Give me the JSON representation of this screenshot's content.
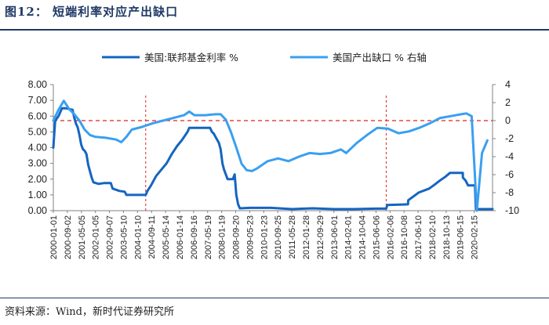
{
  "figure": {
    "title": "图12： 短端利率对应产出缺口",
    "source": "资料来源：Wind，新时代证券研究所"
  },
  "colors": {
    "series_fed": "#1565c0",
    "series_gap": "#3a9ff0",
    "zero_line": "#e0231b",
    "title": "#1f3864",
    "axis": "#808080"
  },
  "chart_data": {
    "type": "line",
    "legend": {
      "placement": "top",
      "items": [
        "美国:联邦基金利率  %",
        "美国产出缺口    %  右轴"
      ]
    },
    "left_axis": {
      "ylim": [
        0,
        8
      ],
      "ticks": [
        "0.00",
        "1.00",
        "2.00",
        "3.00",
        "4.00",
        "5.00",
        "6.00",
        "7.00",
        "8.00"
      ]
    },
    "right_axis": {
      "ylim": [
        -10,
        4
      ],
      "ticks": [
        "-10",
        "-8",
        "-6",
        "-4",
        "-2",
        "0",
        "2",
        "4"
      ]
    },
    "x_axis": {
      "range": [
        "2000-01-01",
        "2020-12-31"
      ],
      "tick_labels": [
        "2000-01-01",
        "2000-09-02",
        "2001-05-05",
        "2002-01-05",
        "2002-09-07",
        "2003-05-10",
        "2004-01-10",
        "2004-09-11",
        "2005-05-14",
        "2006-01-14",
        "2006-09-16",
        "2007-05-19",
        "2008-01-19",
        "2008-09-20",
        "2009-05-23",
        "2010-01-23",
        "2010-09-25",
        "2011-05-28",
        "2012-01-28",
        "2012-09-29",
        "2013-06-01",
        "2014-02-01",
        "2014-10-04",
        "2015-06-06",
        "2016-02-06",
        "2016-10-08",
        "2017-06-10",
        "2018-02-10",
        "2018-10-13",
        "2019-06-15",
        "2020-02-15"
      ]
    },
    "reference_lines": {
      "gap_zero": 0,
      "vertical_dates": [
        "2004-06-01",
        "2015-12-01"
      ]
    },
    "series": [
      {
        "name": "美国:联邦基金利率  %",
        "axis": "left",
        "points": [
          [
            "2000-01-01",
            4.0
          ],
          [
            "2000-02-01",
            5.7
          ],
          [
            "2000-04-01",
            6.0
          ],
          [
            "2000-06-01",
            6.5
          ],
          [
            "2000-08-01",
            6.5
          ],
          [
            "2000-12-01",
            6.4
          ],
          [
            "2001-01-01",
            5.9
          ],
          [
            "2001-02-01",
            5.5
          ],
          [
            "2001-03-01",
            5.3
          ],
          [
            "2001-04-01",
            4.8
          ],
          [
            "2001-05-01",
            4.2
          ],
          [
            "2001-06-01",
            3.9
          ],
          [
            "2001-07-01",
            3.8
          ],
          [
            "2001-08-01",
            3.6
          ],
          [
            "2001-09-01",
            2.9
          ],
          [
            "2001-10-01",
            2.5
          ],
          [
            "2001-11-01",
            2.1
          ],
          [
            "2001-12-01",
            1.8
          ],
          [
            "2002-03-01",
            1.7
          ],
          [
            "2002-06-01",
            1.75
          ],
          [
            "2002-10-01",
            1.75
          ],
          [
            "2002-11-01",
            1.4
          ],
          [
            "2003-03-01",
            1.25
          ],
          [
            "2003-06-01",
            1.2
          ],
          [
            "2003-07-01",
            1.0
          ],
          [
            "2004-01-01",
            1.0
          ],
          [
            "2004-06-01",
            1.0
          ],
          [
            "2004-07-01",
            1.25
          ],
          [
            "2004-09-01",
            1.6
          ],
          [
            "2004-12-01",
            2.2
          ],
          [
            "2005-03-01",
            2.6
          ],
          [
            "2005-06-01",
            3.0
          ],
          [
            "2005-09-01",
            3.6
          ],
          [
            "2005-12-01",
            4.1
          ],
          [
            "2006-03-01",
            4.5
          ],
          [
            "2006-06-01",
            5.0
          ],
          [
            "2006-07-01",
            5.25
          ],
          [
            "2007-07-01",
            5.25
          ],
          [
            "2007-08-01",
            5.0
          ],
          [
            "2007-09-01",
            4.9
          ],
          [
            "2007-10-01",
            4.7
          ],
          [
            "2007-12-01",
            4.3
          ],
          [
            "2008-01-01",
            3.9
          ],
          [
            "2008-02-01",
            3.0
          ],
          [
            "2008-03-01",
            2.6
          ],
          [
            "2008-05-01",
            2.0
          ],
          [
            "2008-08-01",
            2.0
          ],
          [
            "2008-09-01",
            2.3
          ],
          [
            "2008-10-01",
            1.0
          ],
          [
            "2008-11-01",
            0.4
          ],
          [
            "2008-12-01",
            0.15
          ],
          [
            "2009-06-01",
            0.18
          ],
          [
            "2010-06-01",
            0.18
          ],
          [
            "2011-06-01",
            0.1
          ],
          [
            "2012-06-01",
            0.15
          ],
          [
            "2013-06-01",
            0.1
          ],
          [
            "2014-06-01",
            0.1
          ],
          [
            "2015-06-01",
            0.13
          ],
          [
            "2015-12-01",
            0.13
          ],
          [
            "2015-12-20",
            0.36
          ],
          [
            "2016-06-01",
            0.38
          ],
          [
            "2016-12-15",
            0.4
          ],
          [
            "2016-12-20",
            0.66
          ],
          [
            "2017-03-20",
            0.9
          ],
          [
            "2017-06-20",
            1.15
          ],
          [
            "2017-12-20",
            1.4
          ],
          [
            "2018-03-25",
            1.65
          ],
          [
            "2018-06-20",
            1.9
          ],
          [
            "2018-09-30",
            2.15
          ],
          [
            "2018-12-20",
            2.4
          ],
          [
            "2019-07-31",
            2.4
          ],
          [
            "2019-08-01",
            2.1
          ],
          [
            "2019-09-20",
            1.9
          ],
          [
            "2019-10-31",
            1.6
          ],
          [
            "2020-02-28",
            1.6
          ],
          [
            "2020-03-05",
            1.1
          ],
          [
            "2020-03-16",
            0.1
          ],
          [
            "2020-12-31",
            0.1
          ]
        ]
      },
      {
        "name": "美国产出缺口    %  右轴",
        "axis": "right",
        "points": [
          [
            "2000-01-01",
            0.0
          ],
          [
            "2000-04-01",
            1.2
          ],
          [
            "2000-07-01",
            2.2
          ],
          [
            "2000-10-01",
            1.3
          ],
          [
            "2001-01-01",
            0.7
          ],
          [
            "2001-04-01",
            0.0
          ],
          [
            "2001-07-01",
            -1.0
          ],
          [
            "2001-10-01",
            -1.6
          ],
          [
            "2002-01-01",
            -1.8
          ],
          [
            "2002-07-01",
            -1.9
          ],
          [
            "2003-01-01",
            -2.1
          ],
          [
            "2003-04-01",
            -2.4
          ],
          [
            "2003-07-01",
            -1.8
          ],
          [
            "2003-10-01",
            -1.0
          ],
          [
            "2004-04-01",
            -0.7
          ],
          [
            "2004-10-01",
            -0.3
          ],
          [
            "2005-04-01",
            0.0
          ],
          [
            "2005-10-01",
            0.3
          ],
          [
            "2006-04-01",
            0.6
          ],
          [
            "2006-07-01",
            1.0
          ],
          [
            "2006-10-01",
            0.6
          ],
          [
            "2007-04-01",
            0.6
          ],
          [
            "2007-10-01",
            0.7
          ],
          [
            "2008-01-01",
            0.7
          ],
          [
            "2008-04-01",
            0.1
          ],
          [
            "2008-07-01",
            -1.3
          ],
          [
            "2008-10-01",
            -3.0
          ],
          [
            "2009-01-01",
            -4.8
          ],
          [
            "2009-04-01",
            -5.5
          ],
          [
            "2009-07-01",
            -5.6
          ],
          [
            "2009-10-01",
            -5.3
          ],
          [
            "2010-04-01",
            -4.5
          ],
          [
            "2010-10-01",
            -4.2
          ],
          [
            "2011-04-01",
            -4.5
          ],
          [
            "2011-10-01",
            -4.0
          ],
          [
            "2012-04-01",
            -3.6
          ],
          [
            "2012-10-01",
            -3.7
          ],
          [
            "2013-04-01",
            -3.6
          ],
          [
            "2013-10-01",
            -3.2
          ],
          [
            "2014-01-01",
            -3.6
          ],
          [
            "2014-07-01",
            -2.5
          ],
          [
            "2015-01-01",
            -1.6
          ],
          [
            "2015-07-01",
            -0.8
          ],
          [
            "2016-01-01",
            -0.9
          ],
          [
            "2016-07-01",
            -1.4
          ],
          [
            "2017-01-01",
            -1.2
          ],
          [
            "2017-07-01",
            -0.8
          ],
          [
            "2018-01-01",
            -0.3
          ],
          [
            "2018-07-01",
            0.3
          ],
          [
            "2019-01-01",
            0.5
          ],
          [
            "2019-07-01",
            0.7
          ],
          [
            "2019-10-01",
            0.8
          ],
          [
            "2020-01-01",
            0.5
          ],
          [
            "2020-04-01",
            -10.0
          ],
          [
            "2020-07-01",
            -3.6
          ],
          [
            "2020-10-01",
            -2.2
          ]
        ]
      }
    ]
  }
}
